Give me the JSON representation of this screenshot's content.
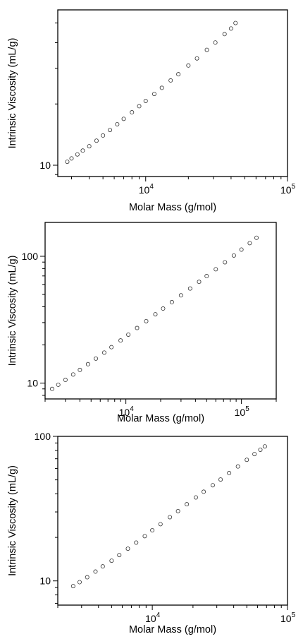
{
  "figure": {
    "background": "#ffffff",
    "marker_color": "#333333",
    "marker_style": "open-circle"
  },
  "chart_data": [
    {
      "type": "scatter",
      "xlabel": "Molar Mass (g/mol)",
      "ylabel": "Intrinsic Viscosity (mL/g)",
      "xscale": "log",
      "yscale": "log",
      "xlim": [
        2400,
        100000
      ],
      "ylim": [
        8.8,
        58
      ],
      "x_ticks": [
        {
          "value": 10000,
          "base": "10",
          "exp": "4"
        },
        {
          "value": 100000,
          "base": "10",
          "exp": "5"
        }
      ],
      "y_ticks": [
        {
          "value": 10,
          "label": "10"
        }
      ],
      "grid": false,
      "series": [
        {
          "x": [
            2800,
            3000,
            3300,
            3600,
            4000,
            4500,
            5000,
            5600,
            6300,
            7000,
            8000,
            9000,
            10000,
            11500,
            13000,
            15000,
            17000,
            20000,
            23000,
            27000,
            31000,
            36000,
            40000,
            43000
          ],
          "y": [
            10.4,
            10.8,
            11.3,
            11.8,
            12.4,
            13.2,
            14.0,
            14.9,
            15.9,
            16.9,
            18.2,
            19.5,
            20.7,
            22.4,
            24.0,
            26.1,
            28.0,
            30.9,
            33.5,
            36.9,
            40.1,
            44.1,
            47.0,
            50.0
          ]
        }
      ]
    },
    {
      "type": "scatter",
      "xlabel": "Molar Mass (g/mol)",
      "ylabel": "Intrinsic Viscosity (mL/g)",
      "xscale": "log",
      "yscale": "log",
      "xlim": [
        2000,
        200000
      ],
      "ylim": [
        7.5,
        185
      ],
      "x_ticks": [
        {
          "value": 10000,
          "base": "10",
          "exp": "4"
        },
        {
          "value": 100000,
          "base": "10",
          "exp": "5"
        }
      ],
      "y_ticks": [
        {
          "value": 10,
          "label": "10"
        },
        {
          "value": 100,
          "label": "100"
        }
      ],
      "grid": false,
      "series": [
        {
          "x": [
            2300,
            2600,
            3000,
            3500,
            4000,
            4700,
            5500,
            6500,
            7500,
            9000,
            10500,
            12500,
            15000,
            18000,
            21000,
            25000,
            30000,
            36000,
            43000,
            50000,
            60000,
            72000,
            86000,
            100000,
            118000,
            135000
          ],
          "y": [
            9.0,
            9.7,
            10.6,
            11.7,
            12.7,
            14.1,
            15.6,
            17.4,
            19.2,
            21.7,
            24.1,
            27.2,
            30.8,
            34.9,
            38.7,
            43.5,
            49.2,
            55.7,
            62.9,
            69.8,
            79.0,
            89.7,
            101.5,
            113.0,
            127.0,
            140.0
          ]
        }
      ]
    },
    {
      "type": "scatter",
      "xlabel": "Molar Mass (g/mol)",
      "ylabel": "Intrinsic Viscosity (mL/g)",
      "xscale": "log",
      "yscale": "log",
      "xlim": [
        2000,
        100000
      ],
      "ylim": [
        6.8,
        100
      ],
      "x_ticks": [
        {
          "value": 10000,
          "base": "10",
          "exp": "4"
        },
        {
          "value": 100000,
          "base": "10",
          "exp": "5"
        }
      ],
      "y_ticks": [
        {
          "value": 10,
          "label": "10"
        },
        {
          "value": 100,
          "label": "100"
        }
      ],
      "grid": false,
      "series": [
        {
          "x": [
            2600,
            2900,
            3300,
            3800,
            4300,
            5000,
            5700,
            6600,
            7600,
            8800,
            10000,
            11500,
            13500,
            15500,
            18000,
            21000,
            24000,
            28000,
            32000,
            37000,
            43000,
            50000,
            57000,
            63000,
            68000
          ],
          "y": [
            9.2,
            9.8,
            10.6,
            11.6,
            12.6,
            13.8,
            15.1,
            16.7,
            18.4,
            20.4,
            22.4,
            24.7,
            27.6,
            30.4,
            33.9,
            37.8,
            41.4,
            45.9,
            50.3,
            55.7,
            61.9,
            68.8,
            75.4,
            80.8,
            85.2
          ]
        }
      ]
    }
  ]
}
